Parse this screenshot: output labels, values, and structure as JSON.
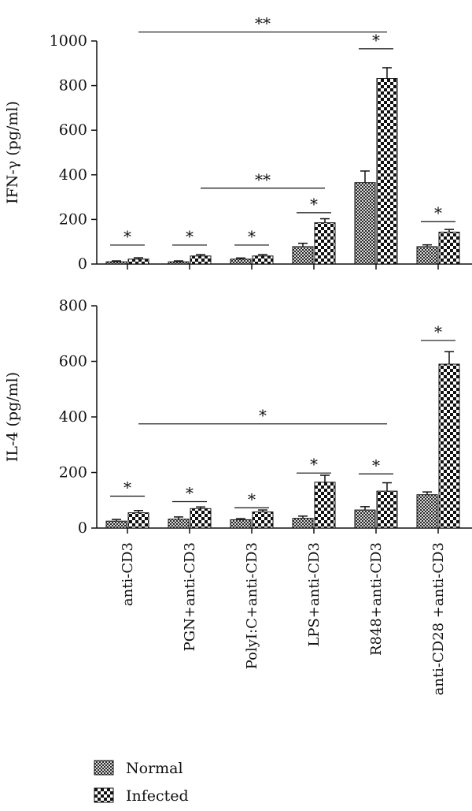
{
  "chart_data": [
    {
      "type": "bar",
      "ylabel": "IFN-γ (pg/ml)",
      "ylim": [
        0,
        1000
      ],
      "yticks": [
        0,
        200,
        400,
        600,
        800,
        1000
      ],
      "ytick_labels": [
        "0",
        "200",
        "400",
        "600",
        "800",
        "1000"
      ],
      "categories": [
        "anti-CD3",
        "PGN+anti-CD3",
        "PolyI:C+anti-CD3",
        "LPS+anti-CD3",
        "R848+anti-CD3",
        "anti-CD28 +anti-CD3"
      ],
      "series": [
        {
          "name": "Normal",
          "values": [
            10,
            10,
            22,
            78,
            365,
            78
          ],
          "errors": [
            4,
            4,
            5,
            15,
            52,
            8
          ]
        },
        {
          "name": "Infected",
          "values": [
            22,
            36,
            36,
            185,
            832,
            143
          ],
          "errors": [
            6,
            6,
            6,
            18,
            48,
            12
          ]
        }
      ],
      "significance": [
        {
          "label": "*",
          "from": 0,
          "to": 0,
          "y": 85
        },
        {
          "label": "*",
          "from": 1,
          "to": 1,
          "y": 85
        },
        {
          "label": "*",
          "from": 2,
          "to": 2,
          "y": 85
        },
        {
          "label": "*",
          "from": 3,
          "to": 3,
          "y": 230
        },
        {
          "label": "*",
          "from": 4,
          "to": 4,
          "y": 965
        },
        {
          "label": "*",
          "from": 5,
          "to": 5,
          "y": 190
        },
        {
          "label": "**",
          "from": 1,
          "to": 3,
          "y": 340
        },
        {
          "label": "**",
          "from": 0,
          "to": 4,
          "y": 1040
        }
      ],
      "grid": false
    },
    {
      "type": "bar",
      "ylabel": "IL-4 (pg/ml)",
      "ylim": [
        0,
        800
      ],
      "yticks": [
        0,
        200,
        400,
        600,
        800
      ],
      "ytick_labels": [
        "0",
        "200",
        "400",
        "600",
        "800"
      ],
      "categories": [
        "anti-CD3",
        "PGN+anti-CD3",
        "PolyI:C+anti-CD3",
        "LPS+anti-CD3",
        "R848+anti-CD3",
        "anti-CD28 +anti-CD3"
      ],
      "series": [
        {
          "name": "Normal",
          "values": [
            25,
            32,
            30,
            35,
            65,
            120
          ],
          "errors": [
            6,
            8,
            4,
            8,
            12,
            10
          ]
        },
        {
          "name": "Infected",
          "values": [
            55,
            70,
            58,
            165,
            133,
            590
          ],
          "errors": [
            8,
            6,
            7,
            25,
            30,
            45
          ]
        }
      ],
      "significance": [
        {
          "label": "*",
          "from": 0,
          "to": 0,
          "y": 115
        },
        {
          "label": "*",
          "from": 1,
          "to": 1,
          "y": 95
        },
        {
          "label": "*",
          "from": 2,
          "to": 2,
          "y": 73
        },
        {
          "label": "*",
          "from": 3,
          "to": 3,
          "y": 198
        },
        {
          "label": "*",
          "from": 4,
          "to": 4,
          "y": 195
        },
        {
          "label": "*",
          "from": 5,
          "to": 5,
          "y": 675
        },
        {
          "label": "*",
          "from": 0,
          "to": 4,
          "y": 375
        }
      ],
      "grid": false
    }
  ],
  "legend": {
    "position": "bottom-left",
    "items": [
      {
        "label": "Normal",
        "pattern": "small-checker"
      },
      {
        "label": "Infected",
        "pattern": "large-checker"
      }
    ]
  }
}
